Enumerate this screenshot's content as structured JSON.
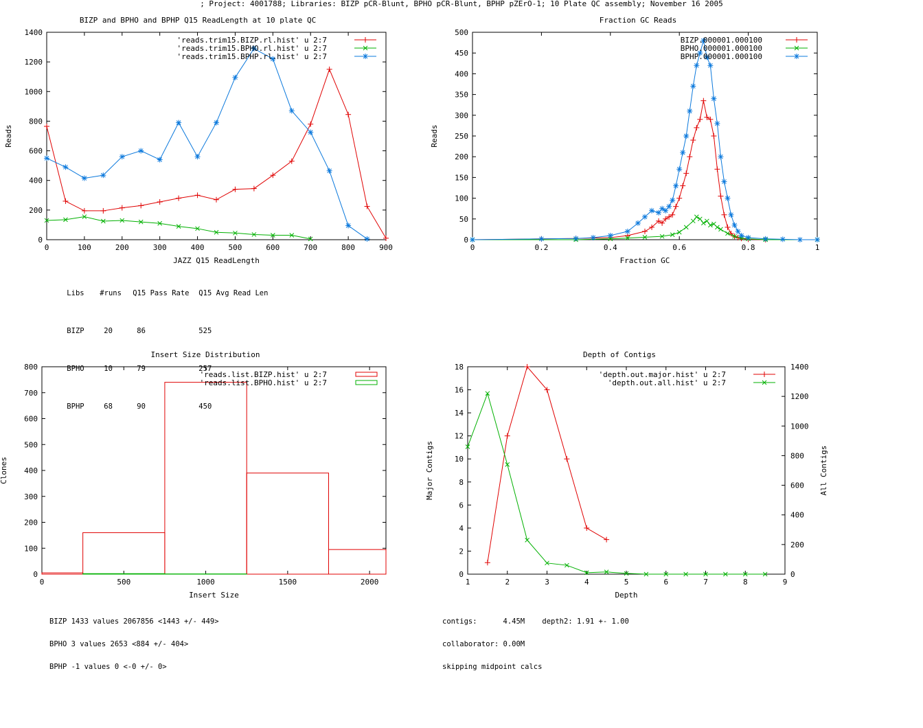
{
  "page": {
    "title": "; Project: 4001788; Libraries: BIZP pCR-Blunt, BPHO pCR-Blunt, BPHP pZErO-1; 10 Plate QC assembly; November 16 2005"
  },
  "colors": {
    "red": "#e00000",
    "green": "#00b000",
    "blue": "#0a78dc",
    "axis": "#000000"
  },
  "stats_table": {
    "headers": [
      "Libs",
      "#runs",
      "Q15 Pass Rate",
      "Q15 Avg Read Len"
    ],
    "rows": [
      [
        "BIZP",
        "20",
        "86",
        "525"
      ],
      [
        "BPHO",
        "10",
        "79",
        "257"
      ],
      [
        "BPHP",
        "68",
        "90",
        "450"
      ]
    ]
  },
  "insert_notes": [
    "BIZP 1433 values 2067856 <1443 +/- 449>",
    "BPHO 3 values 2653 <884 +/- 404>",
    "BPHP -1 values 0 <-0 +/- 0>"
  ],
  "depth_notes": [
    "contigs:      4.45M    depth2: 1.91 +- 1.00",
    "collaborator: 0.00M",
    "skipping midpoint calcs"
  ],
  "chart_data": [
    {
      "type": "line",
      "title": "BIZP and BPHO and BPHP Q15 ReadLength at 10 plate QC",
      "xlabel": "JAZZ Q15 ReadLength",
      "ylabel": "Reads",
      "xlim": [
        0,
        900
      ],
      "ylim": [
        0,
        1400
      ],
      "xticks": [
        0,
        100,
        200,
        300,
        400,
        500,
        600,
        700,
        800,
        900
      ],
      "yticks": [
        0,
        200,
        400,
        600,
        800,
        1000,
        1200,
        1400
      ],
      "legend_position": "top-right",
      "series": [
        {
          "name": "'reads.trim15.BIZP.rl.hist' u 2:7",
          "color": "red",
          "marker": "+",
          "x": [
            0,
            50,
            100,
            150,
            200,
            250,
            300,
            350,
            400,
            450,
            500,
            550,
            600,
            650,
            700,
            750,
            800,
            850,
            900
          ],
          "y": [
            765,
            260,
            195,
            195,
            215,
            230,
            255,
            280,
            300,
            270,
            340,
            345,
            435,
            530,
            780,
            1150,
            845,
            225,
            10
          ]
        },
        {
          "name": "'reads.trim15.BPHO.rl.hist' u 2:7",
          "color": "green",
          "marker": "x",
          "x": [
            0,
            50,
            100,
            150,
            200,
            250,
            300,
            350,
            400,
            450,
            500,
            550,
            600,
            650,
            700
          ],
          "y": [
            130,
            135,
            155,
            125,
            130,
            120,
            110,
            90,
            75,
            50,
            45,
            35,
            30,
            30,
            5
          ]
        },
        {
          "name": "'reads.trim15.BPHP.rl.hist' u 2:7",
          "color": "blue",
          "marker": "*",
          "x": [
            0,
            50,
            100,
            150,
            200,
            250,
            300,
            350,
            400,
            450,
            500,
            550,
            600,
            650,
            700,
            750,
            800,
            850
          ],
          "y": [
            550,
            490,
            415,
            435,
            560,
            600,
            540,
            790,
            560,
            790,
            1095,
            1290,
            1220,
            870,
            725,
            465,
            95,
            5
          ]
        }
      ]
    },
    {
      "type": "line",
      "title": "Fraction GC Reads",
      "xlabel": "Fraction GC",
      "ylabel": "Reads",
      "xlim": [
        0,
        1
      ],
      "ylim": [
        0,
        500
      ],
      "xticks": [
        0,
        0.2,
        0.4,
        0.6,
        0.8,
        1
      ],
      "yticks": [
        0,
        50,
        100,
        150,
        200,
        250,
        300,
        350,
        400,
        450,
        500
      ],
      "legend_position": "top-right",
      "series": [
        {
          "name": "BIZP.000001.000100",
          "color": "red",
          "marker": "+",
          "x": [
            0,
            0.2,
            0.3,
            0.4,
            0.45,
            0.5,
            0.52,
            0.54,
            0.55,
            0.56,
            0.57,
            0.58,
            0.59,
            0.6,
            0.61,
            0.62,
            0.63,
            0.64,
            0.65,
            0.66,
            0.67,
            0.68,
            0.69,
            0.7,
            0.71,
            0.72,
            0.73,
            0.74,
            0.75,
            0.76,
            0.77,
            0.78,
            0.8,
            0.85,
            1
          ],
          "y": [
            0,
            2,
            3,
            5,
            10,
            20,
            30,
            45,
            40,
            50,
            55,
            60,
            80,
            100,
            130,
            160,
            200,
            240,
            270,
            290,
            335,
            295,
            290,
            250,
            170,
            105,
            60,
            30,
            15,
            8,
            5,
            3,
            1,
            0,
            0
          ]
        },
        {
          "name": "BPHO.000001.000100",
          "color": "green",
          "marker": "x",
          "x": [
            0,
            0.3,
            0.4,
            0.45,
            0.5,
            0.55,
            0.58,
            0.6,
            0.62,
            0.64,
            0.65,
            0.66,
            0.67,
            0.68,
            0.69,
            0.7,
            0.71,
            0.72,
            0.74,
            0.76,
            0.78,
            0.8,
            0.85,
            1
          ],
          "y": [
            0,
            0,
            2,
            4,
            6,
            8,
            12,
            18,
            30,
            45,
            55,
            50,
            40,
            45,
            35,
            38,
            30,
            25,
            15,
            8,
            4,
            2,
            0,
            0
          ]
        },
        {
          "name": "BPHP.000001.000100",
          "color": "blue",
          "marker": "*",
          "x": [
            0,
            0.2,
            0.3,
            0.35,
            0.4,
            0.45,
            0.48,
            0.5,
            0.52,
            0.54,
            0.55,
            0.56,
            0.57,
            0.58,
            0.59,
            0.6,
            0.61,
            0.62,
            0.63,
            0.64,
            0.65,
            0.66,
            0.67,
            0.68,
            0.69,
            0.7,
            0.71,
            0.72,
            0.73,
            0.74,
            0.75,
            0.76,
            0.77,
            0.78,
            0.8,
            0.85,
            0.9,
            0.95,
            1
          ],
          "y": [
            0,
            2,
            3,
            5,
            10,
            20,
            40,
            55,
            70,
            65,
            75,
            70,
            80,
            95,
            130,
            170,
            210,
            250,
            310,
            370,
            420,
            450,
            480,
            440,
            420,
            340,
            280,
            200,
            140,
            100,
            60,
            35,
            20,
            10,
            5,
            2,
            1,
            0,
            0
          ]
        }
      ]
    },
    {
      "type": "step",
      "title": "Insert Size Distribution",
      "xlabel": "Insert Size",
      "ylabel": "Clones",
      "xlim": [
        0,
        2100
      ],
      "ylim": [
        0,
        800
      ],
      "xticks": [
        0,
        500,
        1000,
        1500,
        2000
      ],
      "yticks": [
        0,
        100,
        200,
        300,
        400,
        500,
        600,
        700,
        800
      ],
      "legend_position": "top-right",
      "series": [
        {
          "name": "'reads.list.BIZP.hist' u 2:7",
          "color": "red",
          "bins": [
            [
              0,
              250,
              5
            ],
            [
              250,
              750,
              160
            ],
            [
              750,
              1250,
              740
            ],
            [
              1250,
              1750,
              390
            ],
            [
              1750,
              2100,
              95
            ]
          ]
        },
        {
          "name": "'reads.list.BPHO.hist' u 2:7",
          "color": "green",
          "bins": [
            [
              250,
              750,
              2
            ],
            [
              750,
              1250,
              1
            ]
          ]
        }
      ]
    },
    {
      "type": "line",
      "title": "Depth of Contigs",
      "xlabel": "Depth",
      "ylabel": "Major Contigs",
      "y2label": "All Contigs",
      "xlim": [
        1,
        9
      ],
      "ylim": [
        0,
        18
      ],
      "y2lim": [
        0,
        1400
      ],
      "xticks": [
        1,
        2,
        3,
        4,
        5,
        6,
        7,
        8,
        9
      ],
      "yticks": [
        0,
        2,
        4,
        6,
        8,
        10,
        12,
        14,
        16,
        18
      ],
      "y2ticks": [
        0,
        200,
        400,
        600,
        800,
        1000,
        1200,
        1400
      ],
      "legend_position": "top-right",
      "series": [
        {
          "name": "'depth.out.major.hist' u 2:7",
          "color": "red",
          "marker": "+",
          "axis": "y",
          "x": [
            1.5,
            2,
            2.5,
            3,
            3.5,
            4,
            4.5
          ],
          "y": [
            1,
            12,
            18,
            16,
            10,
            4,
            3
          ]
        },
        {
          "name": "'depth.out.all.hist' u 2:7",
          "color": "green",
          "marker": "x",
          "axis": "y2",
          "x": [
            1,
            1.5,
            2,
            2.5,
            3,
            3.5,
            4,
            4.5,
            5,
            5.5,
            6,
            6.5,
            7,
            7.5,
            8,
            8.5
          ],
          "y": [
            860,
            1220,
            740,
            230,
            75,
            60,
            10,
            15,
            5,
            0,
            0,
            0,
            0,
            0,
            0,
            0
          ]
        }
      ]
    }
  ]
}
